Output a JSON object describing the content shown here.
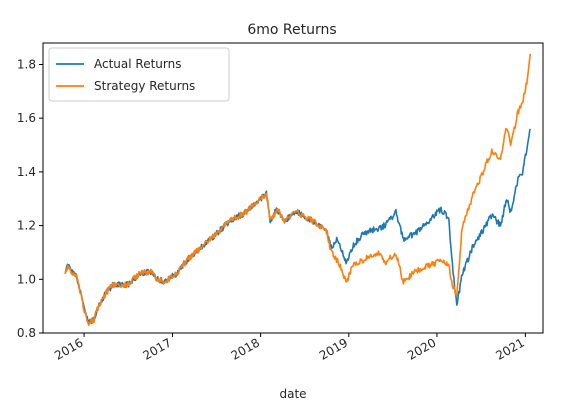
{
  "chart_data": {
    "type": "line",
    "title": "6mo Returns",
    "xlabel": "date",
    "ylabel": "",
    "xlim": [
      "2015-07-15",
      "2021-03-15"
    ],
    "ylim": [
      0.8,
      1.88
    ],
    "y_ticks": [
      0.8,
      1.0,
      1.2,
      1.4,
      1.6,
      1.8
    ],
    "y_tick_labels": [
      "0.8",
      "1.0",
      "1.2",
      "1.4",
      "1.6",
      "1.8"
    ],
    "x_ticks": [
      "2016-01-01",
      "2017-01-01",
      "2018-01-01",
      "2019-01-01",
      "2020-01-01",
      "2021-01-01"
    ],
    "x_tick_labels": [
      "2016",
      "2017",
      "2018",
      "2019",
      "2020",
      "2021"
    ],
    "grid": false,
    "legend": {
      "position": "top-left"
    },
    "series": [
      {
        "name": "Actual Returns",
        "color": "#1f77b4",
        "points": [
          [
            "2015-10-15",
            1.02
          ],
          [
            "2015-10-25",
            1.05
          ],
          [
            "2015-11-10",
            1.03
          ],
          [
            "2015-12-01",
            1.01
          ],
          [
            "2015-12-20",
            0.94
          ],
          [
            "2016-01-05",
            0.87
          ],
          [
            "2016-01-20",
            0.84
          ],
          [
            "2016-02-10",
            0.85
          ],
          [
            "2016-03-01",
            0.9
          ],
          [
            "2016-04-01",
            0.95
          ],
          [
            "2016-05-01",
            0.98
          ],
          [
            "2016-07-01",
            0.98
          ],
          [
            "2016-08-15",
            1.02
          ],
          [
            "2016-10-01",
            1.03
          ],
          [
            "2016-11-01",
            1.0
          ],
          [
            "2016-12-01",
            0.99
          ],
          [
            "2017-01-15",
            1.02
          ],
          [
            "2017-03-01",
            1.07
          ],
          [
            "2017-05-01",
            1.12
          ],
          [
            "2017-07-01",
            1.17
          ],
          [
            "2017-09-01",
            1.22
          ],
          [
            "2017-11-01",
            1.25
          ],
          [
            "2018-01-25",
            1.32
          ],
          [
            "2018-02-10",
            1.22
          ],
          [
            "2018-03-10",
            1.26
          ],
          [
            "2018-04-10",
            1.22
          ],
          [
            "2018-06-01",
            1.25
          ],
          [
            "2018-08-01",
            1.22
          ],
          [
            "2018-10-01",
            1.18
          ],
          [
            "2018-10-20",
            1.12
          ],
          [
            "2018-11-15",
            1.15
          ],
          [
            "2018-12-24",
            1.06
          ],
          [
            "2019-01-15",
            1.12
          ],
          [
            "2019-03-01",
            1.17
          ],
          [
            "2019-05-01",
            1.19
          ],
          [
            "2019-06-01",
            1.2
          ],
          [
            "2019-07-15",
            1.25
          ],
          [
            "2019-08-15",
            1.15
          ],
          [
            "2019-10-01",
            1.17
          ],
          [
            "2019-12-01",
            1.22
          ],
          [
            "2020-01-15",
            1.26
          ],
          [
            "2020-02-19",
            1.23
          ],
          [
            "2020-03-05",
            1.05
          ],
          [
            "2020-03-23",
            0.9
          ],
          [
            "2020-04-15",
            1.02
          ],
          [
            "2020-06-01",
            1.13
          ],
          [
            "2020-07-01",
            1.17
          ],
          [
            "2020-08-15",
            1.24
          ],
          [
            "2020-09-20",
            1.2
          ],
          [
            "2020-10-15",
            1.3
          ],
          [
            "2020-11-01",
            1.25
          ],
          [
            "2020-12-01",
            1.37
          ],
          [
            "2020-12-20",
            1.4
          ],
          [
            "2021-01-10",
            1.5
          ],
          [
            "2021-01-22",
            1.56
          ]
        ]
      },
      {
        "name": "Strategy Returns",
        "color": "#ff7f0e",
        "points": [
          [
            "2015-10-15",
            1.02
          ],
          [
            "2015-10-25",
            1.05
          ],
          [
            "2015-11-10",
            1.03
          ],
          [
            "2015-12-01",
            1.01
          ],
          [
            "2015-12-20",
            0.94
          ],
          [
            "2016-01-05",
            0.87
          ],
          [
            "2016-01-20",
            0.84
          ],
          [
            "2016-02-10",
            0.85
          ],
          [
            "2016-03-01",
            0.9
          ],
          [
            "2016-04-01",
            0.95
          ],
          [
            "2016-05-01",
            0.98
          ],
          [
            "2016-07-01",
            0.98
          ],
          [
            "2016-08-15",
            1.02
          ],
          [
            "2016-10-01",
            1.03
          ],
          [
            "2016-11-01",
            1.0
          ],
          [
            "2016-12-01",
            0.99
          ],
          [
            "2017-01-15",
            1.02
          ],
          [
            "2017-03-01",
            1.07
          ],
          [
            "2017-05-01",
            1.12
          ],
          [
            "2017-07-01",
            1.17
          ],
          [
            "2017-09-01",
            1.22
          ],
          [
            "2017-11-01",
            1.25
          ],
          [
            "2018-01-25",
            1.32
          ],
          [
            "2018-02-10",
            1.22
          ],
          [
            "2018-03-10",
            1.26
          ],
          [
            "2018-04-10",
            1.22
          ],
          [
            "2018-06-01",
            1.25
          ],
          [
            "2018-08-01",
            1.22
          ],
          [
            "2018-10-01",
            1.18
          ],
          [
            "2018-10-20",
            1.1
          ],
          [
            "2018-11-15",
            1.07
          ],
          [
            "2018-12-24",
            0.99
          ],
          [
            "2019-01-15",
            1.05
          ],
          [
            "2019-03-01",
            1.07
          ],
          [
            "2019-05-01",
            1.1
          ],
          [
            "2019-06-01",
            1.06
          ],
          [
            "2019-07-15",
            1.1
          ],
          [
            "2019-08-15",
            0.99
          ],
          [
            "2019-10-01",
            1.03
          ],
          [
            "2019-12-01",
            1.05
          ],
          [
            "2020-01-15",
            1.07
          ],
          [
            "2020-02-19",
            1.05
          ],
          [
            "2020-03-05",
            0.98
          ],
          [
            "2020-03-23",
            0.93
          ],
          [
            "2020-04-15",
            1.2
          ],
          [
            "2020-06-01",
            1.32
          ],
          [
            "2020-07-01",
            1.38
          ],
          [
            "2020-08-15",
            1.48
          ],
          [
            "2020-09-20",
            1.45
          ],
          [
            "2020-10-15",
            1.57
          ],
          [
            "2020-11-01",
            1.5
          ],
          [
            "2020-12-01",
            1.62
          ],
          [
            "2020-12-20",
            1.66
          ],
          [
            "2021-01-10",
            1.75
          ],
          [
            "2021-01-22",
            1.84
          ]
        ]
      }
    ]
  }
}
